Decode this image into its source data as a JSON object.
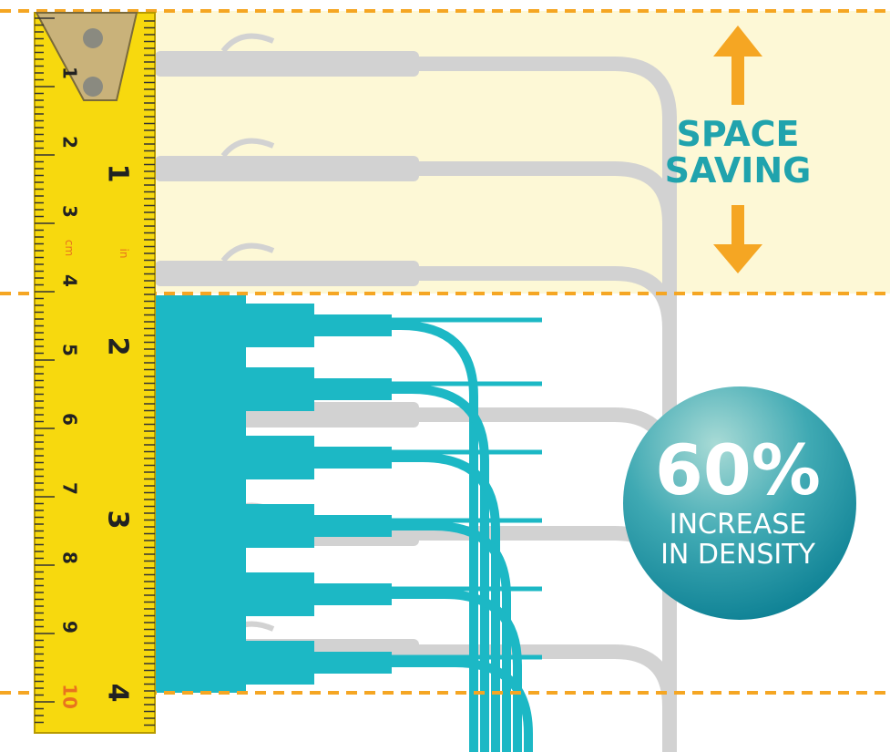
{
  "callout": {
    "title_lines": [
      "SPACE",
      "SAVING"
    ]
  },
  "badge": {
    "value": "60%",
    "lines": [
      "INCREASE",
      "IN DENSITY"
    ]
  },
  "ruler": {
    "cm_labels": [
      "1",
      "2",
      "3",
      "4",
      "5",
      "6",
      "7",
      "8",
      "9",
      "10"
    ],
    "cm_unit": "cm",
    "in_labels": [
      "1",
      "2",
      "3",
      "4"
    ],
    "in_unit": "in"
  }
}
